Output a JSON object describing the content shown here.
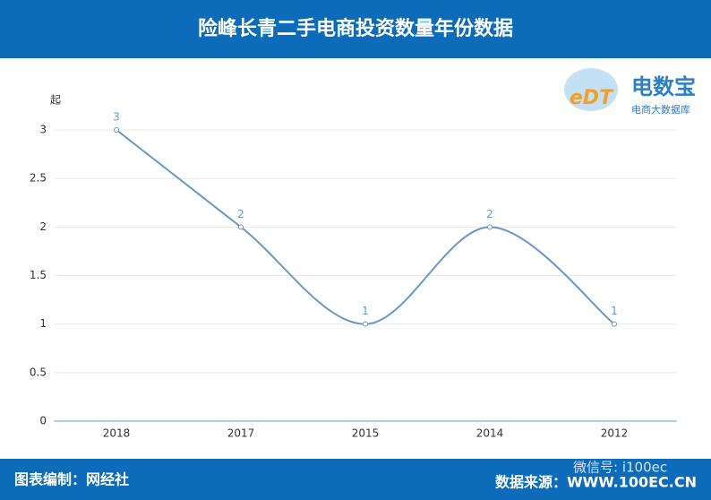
{
  "chart_data": {
    "type": "line",
    "title": "险峰长青二手电商投资数量年份数据",
    "y_label": "起",
    "categories": [
      "2018",
      "2017",
      "2015",
      "2014",
      "2012"
    ],
    "values": [
      3,
      2,
      1,
      2,
      1
    ],
    "color": "#6699c8",
    "ylim": [
      0,
      3
    ],
    "yticks": [
      0,
      0.5,
      1,
      1.5,
      2,
      2.5,
      3
    ],
    "grid": true,
    "annotations": [
      "图表编制：网经社",
      "数据来源：WWW.100EC.CN",
      "微信号: i100ec",
      "电数宝",
      "电商大数据库",
      "eDT"
    ]
  }
}
